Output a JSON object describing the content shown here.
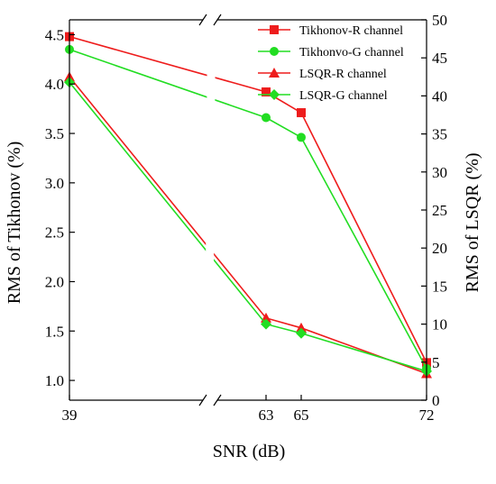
{
  "chart_data": {
    "type": "line",
    "x": [
      39,
      63,
      65,
      72
    ],
    "x_tick_labels": [
      "39",
      "63",
      "65",
      "72"
    ],
    "xlabel": "SNR (dB)",
    "ylabel_left": "RMS of Tikhonov (%)",
    "ylabel_right": "RMS of LSQR (%)",
    "ylim_left": [
      0.8,
      4.65
    ],
    "ylim_right": [
      0,
      50
    ],
    "y_ticks_left": [
      "1.0",
      "1.5",
      "2.0",
      "2.5",
      "3.0",
      "3.5",
      "4.0",
      "4.5"
    ],
    "y_ticks_right": [
      "0",
      "5",
      "10",
      "15",
      "20",
      "25",
      "30",
      "35",
      "40",
      "45",
      "50"
    ],
    "axis_break": "between 39 and 63",
    "grid": false,
    "legend_position": "top-right",
    "series": [
      {
        "name": "Tikhonov-R channel",
        "axis": "left",
        "marker": "square",
        "color": "#ee1c1c",
        "values": [
          4.48,
          3.92,
          3.71,
          1.18
        ]
      },
      {
        "name": "Tikhonvo-G channel",
        "axis": "left",
        "marker": "circle",
        "color": "#22dd22",
        "values": [
          4.35,
          3.66,
          3.46,
          1.12
        ]
      },
      {
        "name": "LSQR-R channel",
        "axis": "right",
        "marker": "triangle",
        "color": "#ee1c1c",
        "values": [
          42.5,
          10.8,
          9.5,
          3.5
        ]
      },
      {
        "name": "LSQR-G channel",
        "axis": "right",
        "marker": "diamond",
        "color": "#22dd22",
        "values": [
          41.8,
          10.0,
          8.8,
          3.8
        ]
      }
    ]
  }
}
